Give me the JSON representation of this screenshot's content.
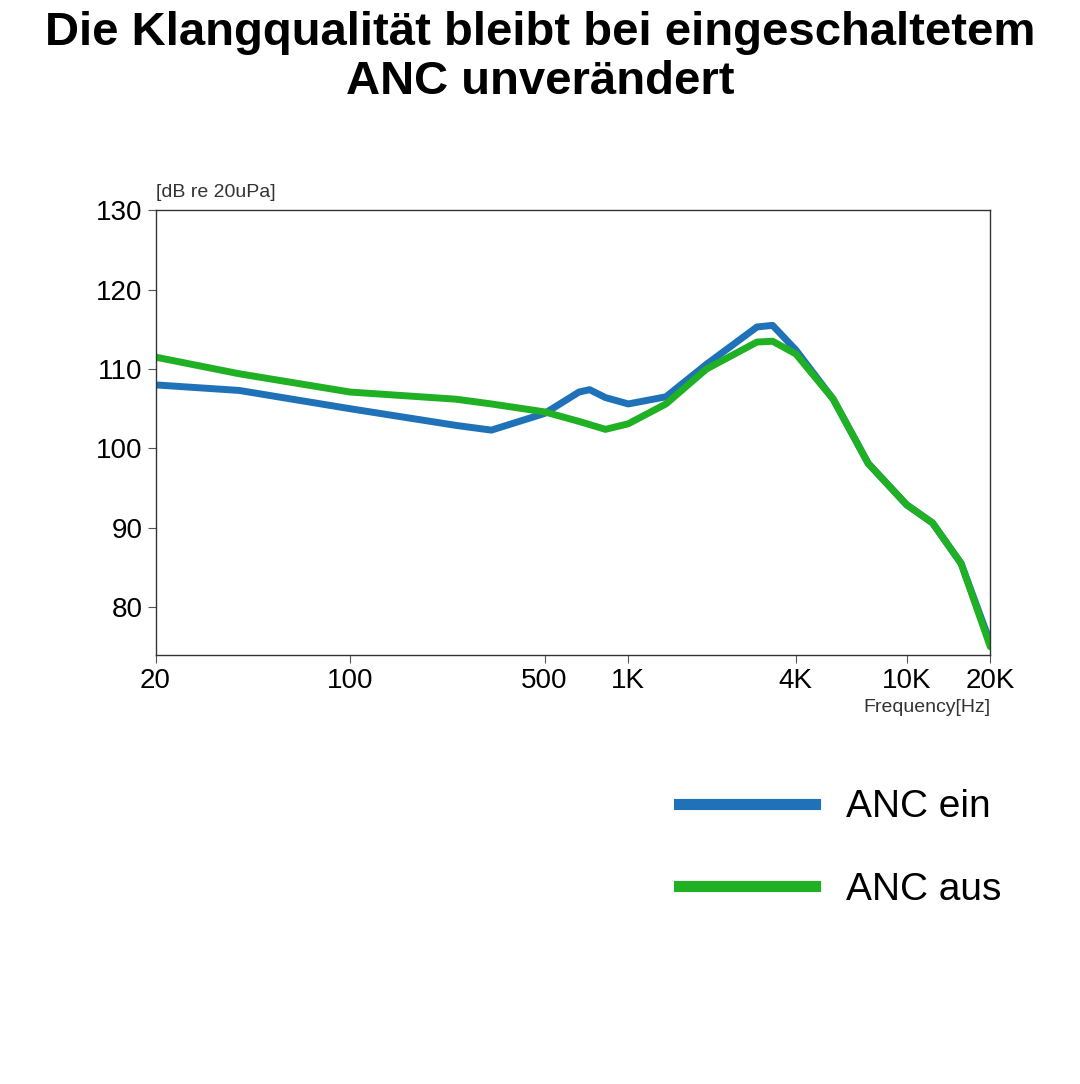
{
  "chart_data": {
    "type": "line",
    "title": "Die Klangqualität bleibt bei eingeschaltetem ANC unverändert",
    "y_label": "[dB re 20uPa]",
    "x_label": "Frequency[Hz]",
    "log": "x",
    "x": [
      20,
      40,
      100,
      240,
      322,
      500,
      665,
      726,
      828,
      1000,
      1365,
      1910,
      2900,
      3300,
      4000,
      5450,
      7280,
      10000,
      12400,
      15700,
      20000
    ],
    "series": [
      {
        "name": "ANC ein",
        "color": "#1f72b8",
        "values": [
          108.0,
          107.3,
          105.0,
          102.9,
          102.3,
          104.4,
          107.1,
          107.4,
          106.4,
          105.6,
          106.5,
          110.6,
          115.3,
          115.5,
          112.4,
          106.2,
          98.1,
          92.9,
          90.6,
          85.5,
          75.5
        ]
      },
      {
        "name": "ANC aus",
        "color": "#1fb024",
        "values": [
          111.5,
          109.4,
          107.1,
          106.2,
          105.6,
          104.6,
          103.4,
          103.0,
          102.4,
          103.1,
          105.6,
          110.0,
          113.4,
          113.5,
          111.9,
          106.2,
          98.1,
          92.9,
          90.6,
          85.5,
          75.0
        ]
      }
    ],
    "xlim": [
      20,
      20000
    ],
    "xticks": [
      20,
      100,
      500,
      {
        "value": 1000,
        "label": "1K"
      },
      {
        "value": 4000,
        "label": "4K"
      },
      {
        "value": 10000,
        "label": "10K"
      },
      {
        "value": 20000,
        "label": "20K"
      }
    ],
    "ylim": [
      74,
      130
    ],
    "yticks": [
      80,
      90,
      100,
      110,
      120,
      130
    ],
    "grid": false,
    "legend": "lower right"
  }
}
